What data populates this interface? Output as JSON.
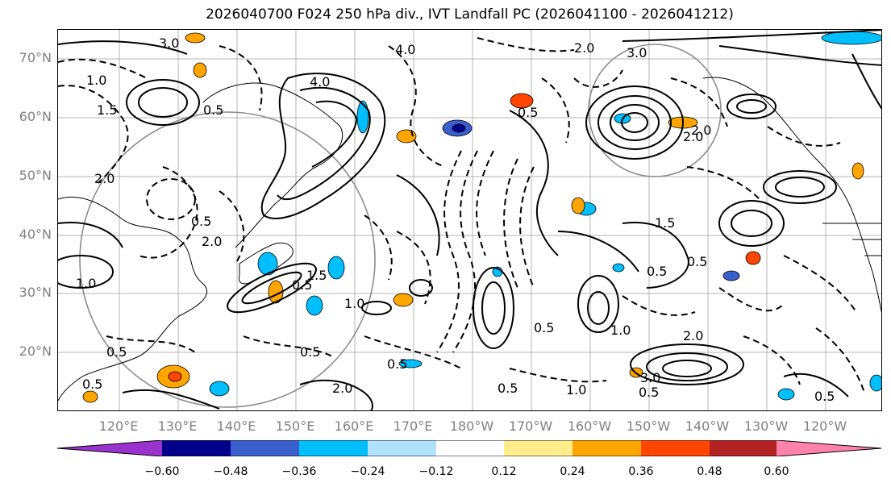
{
  "title": "2026040700 F024 250 hPa div., IVT Landfall PC (2026041100 - 2026041212)",
  "lat_labels": [
    "70°N",
    "60°N",
    "50°N",
    "40°N",
    "30°N",
    "20°N"
  ],
  "lon_labels": [
    "120°E",
    "130°E",
    "140°E",
    "150°E",
    "160°E",
    "170°E",
    "180°W",
    "170°W",
    "160°W",
    "150°W",
    "140°W",
    "130°W",
    "120°W"
  ],
  "colorbar": {
    "colors": [
      "#9a32cd",
      "#00008b",
      "#3a5fcd",
      "#00bfff",
      "#b0e2ff",
      "#ffffff",
      "#ffec8b",
      "#ffa500",
      "#ff4500",
      "#b22222",
      "#ff82ab"
    ],
    "tick_labels": [
      "−0.60",
      "−0.48",
      "−0.36",
      "−0.24",
      "−0.12",
      "0.12",
      "0.24",
      "0.36",
      "0.48",
      "0.60"
    ]
  },
  "contour_labels": [
    "3.0",
    "4.0",
    "2.0",
    "0.5",
    "1.0",
    "1.5",
    "0.5",
    "4.0",
    "3.0",
    "2.0",
    "2.0",
    "0.5",
    "1.5",
    "1.0",
    "0.5",
    "1.5",
    "0.5",
    "2.0",
    "0.5",
    "0.5",
    "0.5",
    "1.0",
    "2.0",
    "3.0",
    "2.0",
    "0.5",
    "1.0",
    "0.5",
    "0.5",
    "2.0",
    "0.5",
    "1.0",
    "0.5",
    "0.5"
  ]
}
